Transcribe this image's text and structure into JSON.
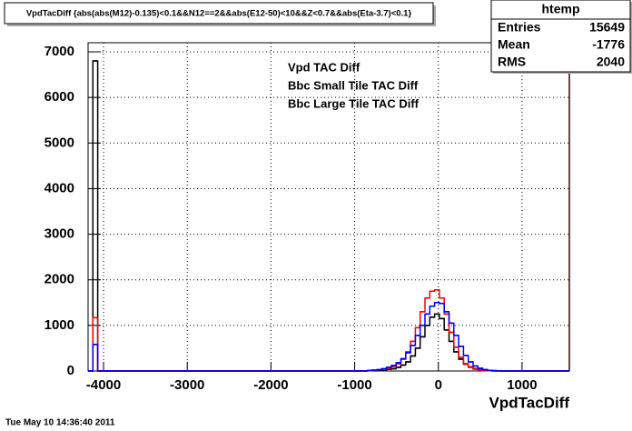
{
  "chart_data": {
    "type": "histogram",
    "title": "VpdTacDiff {abs(abs(M12)-0.135)<0.1&&N12==2&&abs(E12-50)<10&&Z<0.7&&abs(Eta-3.7)<0.1}",
    "x_label": "VpdTacDiff",
    "footer": "Tue May 10 14:36:40 2011",
    "xlim": [
      -4185,
      1565
    ],
    "ylim": [
      0,
      7200
    ],
    "xticks": [
      -4000,
      -3000,
      -2000,
      -1000,
      0,
      1000
    ],
    "yticks": [
      0,
      1000,
      2000,
      3000,
      4000,
      5000,
      6000,
      7000
    ],
    "grid": true,
    "bins": [
      -4185,
      -4127.5,
      -4070,
      -4012.5,
      -3955,
      -3897.5,
      -3840,
      -3782.5,
      -3725,
      -3667.5,
      -3610,
      -3552.5,
      -3495,
      -3437.5,
      -3380,
      -3322.5,
      -3265,
      -3207.5,
      -3150,
      -3092.5,
      -3035,
      -2977.5,
      -2920,
      -2862.5,
      -2805,
      -2747.5,
      -2690,
      -2632.5,
      -2575,
      -2517.5,
      -2460,
      -2402.5,
      -2345,
      -2287.5,
      -2230,
      -2172.5,
      -2115,
      -2057.5,
      -2000,
      -1942.5,
      -1885,
      -1827.5,
      -1770,
      -1712.5,
      -1655,
      -1597.5,
      -1540,
      -1482.5,
      -1425,
      -1367.5,
      -1310,
      -1252.5,
      -1195,
      -1137.5,
      -1080,
      -1022.5,
      -965,
      -907.5,
      -850,
      -792.5,
      -735,
      -677.5,
      -620,
      -562.5,
      -505,
      -447.5,
      -390,
      -332.5,
      -275,
      -217.5,
      -160,
      -102.5,
      -45,
      12.5,
      70,
      127.5,
      185,
      242.5,
      300,
      357.5,
      415,
      472.5,
      530,
      587.5,
      645,
      702.5,
      760,
      817.5,
      875,
      932.5,
      990,
      1047.5,
      1105,
      1162.5,
      1220,
      1277.5,
      1335,
      1392.5,
      1450,
      1507.5,
      1565
    ],
    "series": [
      {
        "name": "Vpd TAC Diff",
        "color": "#000000",
        "values": [
          0,
          6800,
          0,
          0,
          0,
          0,
          0,
          0,
          0,
          0,
          0,
          0,
          0,
          0,
          0,
          0,
          0,
          0,
          0,
          0,
          0,
          0,
          0,
          0,
          0,
          0,
          0,
          0,
          0,
          0,
          0,
          0,
          0,
          0,
          0,
          0,
          0,
          0,
          0,
          0,
          0,
          0,
          0,
          0,
          0,
          0,
          0,
          0,
          0,
          0,
          0,
          0,
          0,
          0,
          0,
          0,
          0,
          0,
          5,
          10,
          15,
          25,
          35,
          50,
          80,
          130,
          200,
          330,
          500,
          750,
          1000,
          1180,
          1250,
          1150,
          900,
          650,
          420,
          260,
          150,
          90,
          50,
          30,
          15,
          8,
          4,
          2,
          0,
          0,
          0,
          0,
          0,
          0,
          0,
          0,
          0,
          0,
          0,
          0,
          0,
          0
        ]
      },
      {
        "name": "Bbc Small Tile TAC Diff",
        "color": "#ff0000",
        "values": [
          0,
          1170,
          0,
          0,
          0,
          0,
          0,
          0,
          0,
          0,
          0,
          0,
          0,
          0,
          0,
          0,
          0,
          0,
          0,
          0,
          0,
          0,
          0,
          0,
          0,
          0,
          0,
          0,
          0,
          0,
          0,
          0,
          0,
          0,
          0,
          0,
          0,
          0,
          0,
          0,
          0,
          0,
          0,
          0,
          0,
          0,
          0,
          0,
          0,
          0,
          0,
          0,
          0,
          0,
          0,
          0,
          0,
          0,
          10,
          15,
          25,
          40,
          60,
          100,
          160,
          260,
          420,
          650,
          950,
          1300,
          1600,
          1750,
          1780,
          1600,
          1250,
          850,
          520,
          300,
          160,
          80,
          40,
          20,
          10,
          5,
          0,
          0,
          0,
          0,
          0,
          0,
          0,
          0,
          0,
          0,
          0,
          0,
          0,
          0,
          0,
          0
        ]
      },
      {
        "name": "Bbc Large Tile TAC Diff",
        "color": "#0000ff",
        "values": [
          0,
          580,
          0,
          0,
          0,
          0,
          0,
          0,
          0,
          0,
          0,
          0,
          0,
          0,
          0,
          0,
          0,
          0,
          0,
          0,
          0,
          0,
          0,
          0,
          0,
          0,
          0,
          0,
          0,
          0,
          0,
          0,
          0,
          0,
          0,
          0,
          0,
          0,
          0,
          0,
          0,
          0,
          0,
          0,
          0,
          0,
          0,
          0,
          0,
          0,
          0,
          0,
          0,
          0,
          0,
          0,
          0,
          0,
          10,
          20,
          30,
          50,
          80,
          120,
          180,
          270,
          400,
          560,
          780,
          1000,
          1250,
          1420,
          1500,
          1480,
          1300,
          1050,
          780,
          540,
          340,
          200,
          110,
          60,
          30,
          15,
          8,
          4,
          0,
          0,
          0,
          0,
          0,
          0,
          0,
          0,
          0,
          0,
          0,
          0,
          0,
          0
        ]
      }
    ],
    "stats": {
      "title": "htemp",
      "rows": [
        [
          "Entries",
          15649
        ],
        [
          "Mean",
          -1776
        ],
        [
          "RMS",
          2040
        ]
      ]
    }
  }
}
